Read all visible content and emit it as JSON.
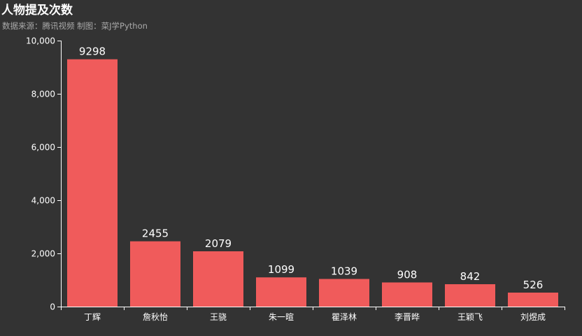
{
  "chart_data": {
    "type": "bar",
    "title": "人物提及次数",
    "subtitle": "数据来源：腾讯视频  制图：菜J学Python",
    "categories": [
      "丁辉",
      "詹秋怡",
      "王骁",
      "朱一暄",
      "瞿泽林",
      "李晋晔",
      "王颖飞",
      "刘煜成"
    ],
    "values": [
      9298,
      2455,
      2079,
      1099,
      1039,
      908,
      842,
      526
    ],
    "ylim": [
      0,
      10000
    ],
    "yticks": [
      0,
      2000,
      4000,
      6000,
      8000,
      10000
    ],
    "ytick_labels": [
      "0",
      "2,000",
      "4,000",
      "6,000",
      "8,000",
      "10,000"
    ],
    "bar_color": "#f05b5b",
    "background": "#333333",
    "grid": false
  }
}
